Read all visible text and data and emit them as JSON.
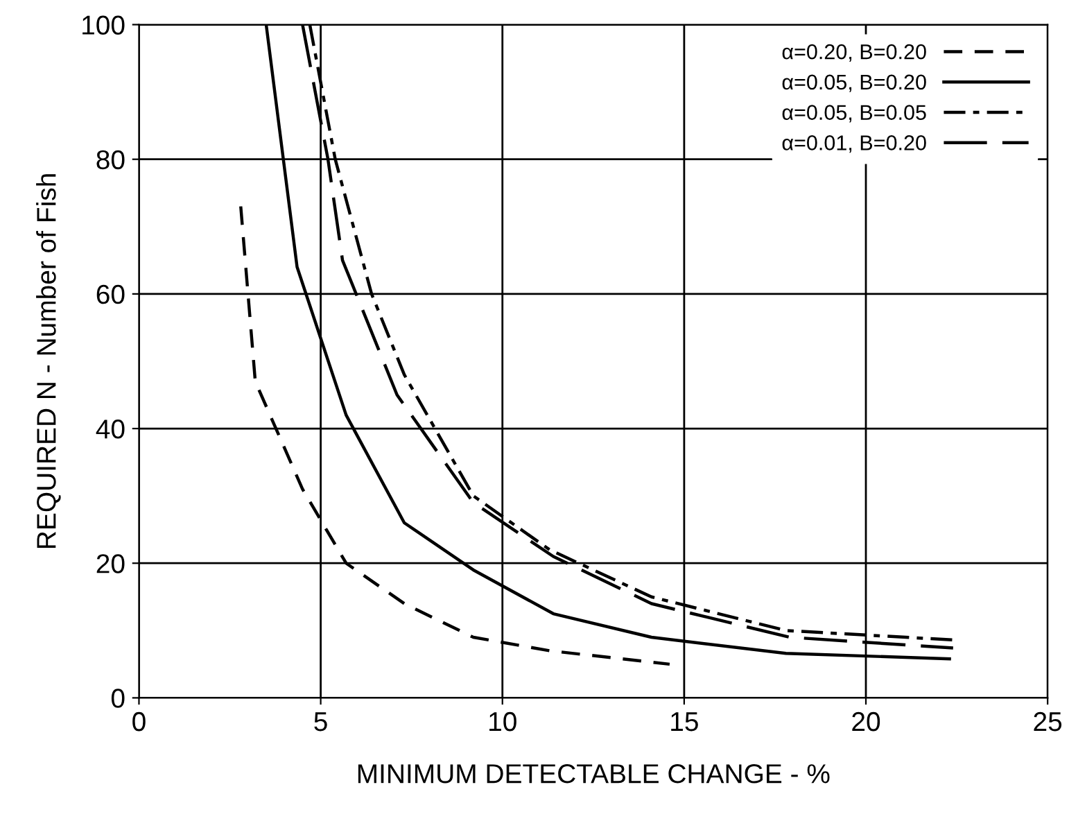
{
  "chart_data": {
    "type": "line",
    "xlabel": "MINIMUM DETECTABLE CHANGE - %",
    "ylabel": "REQUIRED N - Number of Fish",
    "xlim": [
      0,
      25
    ],
    "xticks": [
      0,
      5,
      10,
      15,
      20,
      25
    ],
    "ylim": [
      0,
      100
    ],
    "yticks": [
      0,
      20,
      40,
      60,
      80,
      100
    ],
    "grid": true,
    "legend": "top right",
    "marker": "none",
    "series": [
      {
        "name": "α=0.20, B=0.20",
        "color": "#000000",
        "line_style": "dashed",
        "x": [
          2.8,
          3.2,
          4.5,
          5.7,
          7.3,
          9.2,
          11.3,
          14.6
        ],
        "values": [
          73,
          47,
          31,
          20,
          14,
          9,
          7,
          5
        ]
      },
      {
        "name": "α=0.05, B=0.20",
        "color": "#000000",
        "line_style": "solid",
        "x": [
          3.5,
          4.35,
          5.7,
          7.3,
          9.2,
          11.4,
          14.1,
          17.8,
          22.3
        ],
        "values": [
          100,
          64,
          42,
          26,
          19,
          12.5,
          9,
          6.6,
          5.8
        ]
      },
      {
        "name": "α=0.05, B=0.05",
        "color": "#000000",
        "line_style": "dashdot",
        "x": [
          4.7,
          5.4,
          6.4,
          7.3,
          9.2,
          11.3,
          14.1,
          17.8,
          22.4
        ],
        "values": [
          100,
          80,
          60,
          48,
          30,
          22,
          15,
          10,
          8.6
        ]
      },
      {
        "name": "α=0.01, B=0.20",
        "color": "#000000",
        "line_style": "longdash",
        "x": [
          4.5,
          5.2,
          5.6,
          7.1,
          9.2,
          11.4,
          14.1,
          17.9,
          22.4
        ],
        "values": [
          100,
          80,
          65,
          45,
          29,
          21,
          14,
          9,
          7.4
        ]
      }
    ]
  }
}
